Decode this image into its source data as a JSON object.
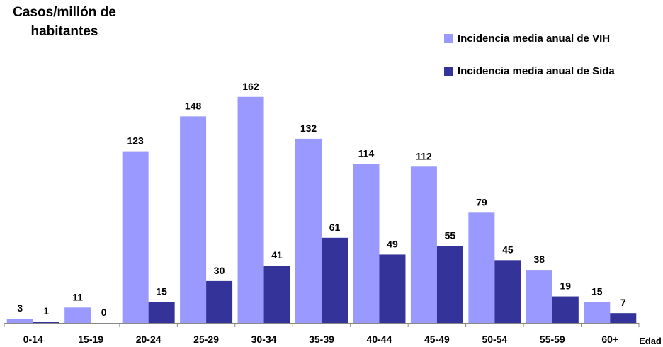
{
  "chart_data": {
    "type": "bar",
    "ylabel": "Casos/millón de habitantes",
    "xlabel": "Edad",
    "categories": [
      "0-14",
      "15-19",
      "20-24",
      "25-29",
      "30-34",
      "35-39",
      "40-44",
      "45-49",
      "50-54",
      "55-59",
      "60+"
    ],
    "series": [
      {
        "name": "Incidencia media anual de VIH",
        "color": "#9999ff",
        "values": [
          3,
          11,
          123,
          148,
          162,
          132,
          114,
          112,
          79,
          38,
          15
        ]
      },
      {
        "name": "Incidencia media anual de Sida",
        "color": "#333399",
        "values": [
          1,
          0,
          15,
          30,
          41,
          61,
          49,
          55,
          45,
          19,
          7
        ]
      }
    ],
    "ylim": [
      0,
      170
    ],
    "grid": false,
    "legend_position": "top-right"
  }
}
